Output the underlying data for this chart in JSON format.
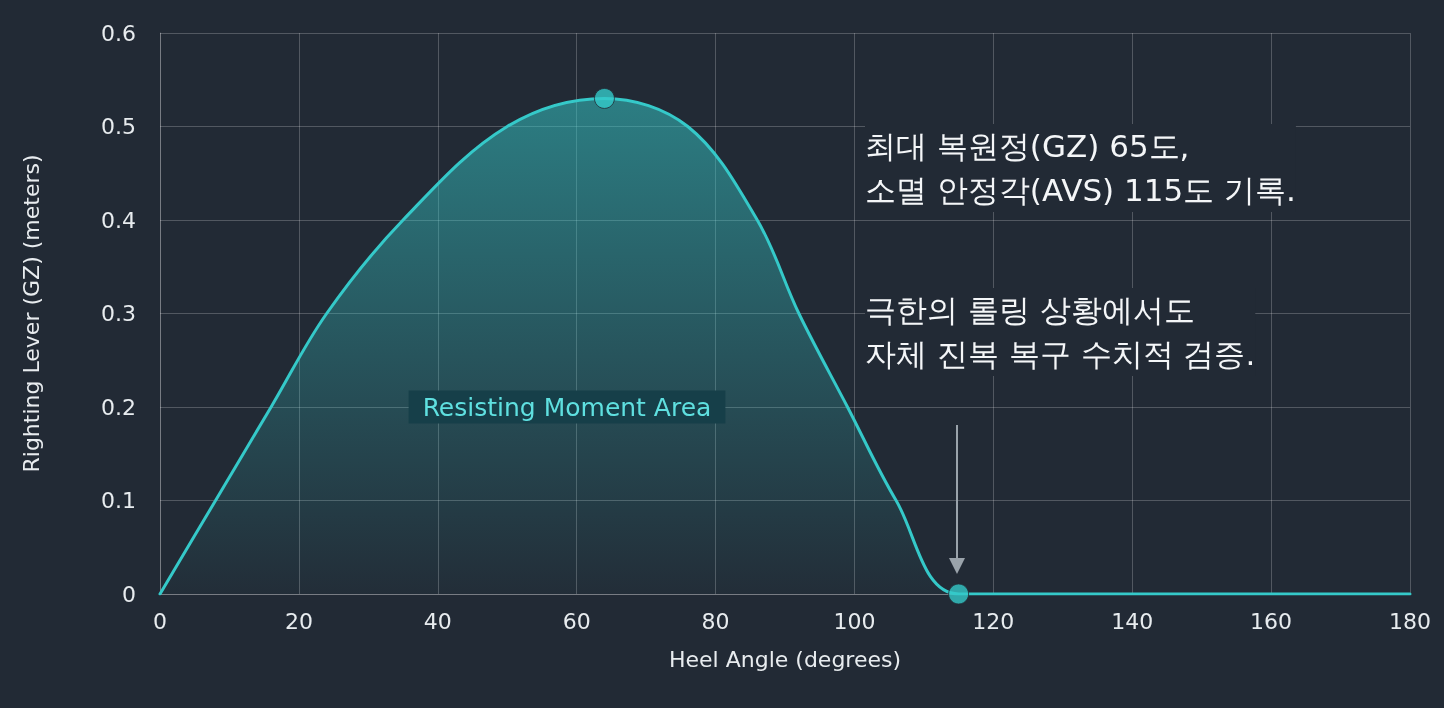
{
  "chart_data": {
    "type": "area",
    "xlabel": "Heel Angle (degrees)",
    "ylabel": "Righting Lever (GZ) (meters)",
    "xlim": [
      0,
      180
    ],
    "xticks": [
      0,
      20,
      40,
      60,
      80,
      100,
      120,
      140,
      160,
      180
    ],
    "ylim": [
      0,
      0.6
    ],
    "yticks": [
      0,
      0.1,
      0.2,
      0.3,
      0.4,
      0.5,
      0.6
    ],
    "grid": true,
    "marker": "none",
    "line_style": "solid",
    "series": [
      {
        "color": "#35c9c9",
        "x": [
          0,
          8,
          16,
          24,
          35,
          50,
          64,
          76,
          86,
          92,
          99,
          106,
          115,
          180
        ],
        "values": [
          0,
          0.1,
          0.2,
          0.3,
          0.4,
          0.5,
          0.53,
          0.5,
          0.4,
          0.3,
          0.2,
          0.1,
          0,
          0
        ]
      },
      {
        "type": "scatter",
        "color": "#35c9c9",
        "marker": "circle",
        "x": [
          64,
          115
        ],
        "values": [
          0.53,
          0
        ]
      }
    ],
    "annotations": [
      "최대 복원정(GZ) 65도,\n소멸 안정각(AVS) 115도 기록.",
      "Resisting Moment Area",
      "극한의 롤링 상황에서도\n자체 진복 복구 수치적 검증."
    ]
  }
}
